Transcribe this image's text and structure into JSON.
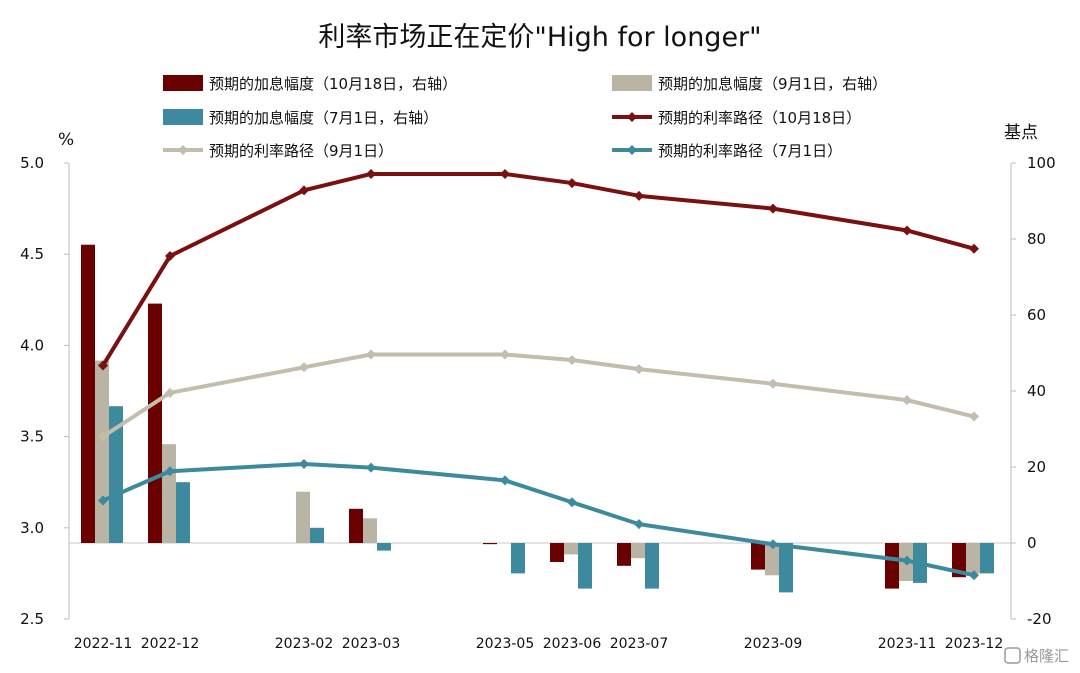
{
  "chart_data": {
    "type": "bar+line",
    "title": "利率市场正在定价\"High for longer\"",
    "left_axis": {
      "unit_label": "%",
      "ylim": [
        2.5,
        5.0
      ],
      "ticks": [
        "2.5",
        "3.0",
        "3.5",
        "4.0",
        "4.5",
        "5.0"
      ]
    },
    "right_axis": {
      "unit_label": "基点",
      "ylim": [
        -20,
        100
      ],
      "ticks": [
        "-20",
        "0",
        "20",
        "40",
        "60",
        "80",
        "100"
      ]
    },
    "categories": [
      "2022-11",
      "2022-12",
      "2023-02",
      "2023-03",
      "2023-05",
      "2023-06",
      "2023-07",
      "2023-09",
      "2023-11",
      "2023-12"
    ],
    "x_positions": [
      0,
      1,
      3,
      4,
      6,
      7,
      8,
      10,
      12,
      13
    ],
    "bar_series": [
      {
        "name": "预期的加息幅度（10月18日，右轴）",
        "color": "#6b0000",
        "axis": "right",
        "values": [
          78.5,
          63,
          null,
          9,
          -0.3,
          -5,
          -6,
          -7,
          -12,
          -9
        ]
      },
      {
        "name": "预期的加息幅度（9月1日，右轴）",
        "color": "#b9b4a3",
        "axis": "right",
        "values": [
          48,
          26,
          13.5,
          6.5,
          null,
          -3,
          -4,
          -8.5,
          -10,
          -8
        ]
      },
      {
        "name": "预期的加息幅度（7月1日，右轴）",
        "color": "#3d8a9e",
        "axis": "right",
        "values": [
          36,
          16,
          4,
          -2,
          -8,
          -12,
          -12,
          -13,
          -10.5,
          -8
        ]
      }
    ],
    "line_series": [
      {
        "name": "预期的利率路径（10月18日）",
        "color": "#7a1010",
        "axis": "left",
        "values": [
          3.89,
          4.49,
          4.85,
          4.94,
          4.94,
          4.89,
          4.82,
          4.75,
          4.63,
          4.53
        ]
      },
      {
        "name": "预期的利率路径（9月1日）",
        "color": "#c2bdac",
        "axis": "left",
        "values": [
          3.5,
          3.74,
          3.88,
          3.95,
          3.95,
          3.92,
          3.87,
          3.79,
          3.7,
          3.61
        ]
      },
      {
        "name": "预期的利率路径（7月1日）",
        "color": "#3d8a9e",
        "axis": "left",
        "values": [
          3.15,
          3.31,
          3.35,
          3.33,
          3.26,
          3.14,
          3.02,
          2.91,
          2.82,
          2.74
        ]
      }
    ],
    "legend_placement": "top, two columns"
  },
  "watermark": "格隆汇"
}
